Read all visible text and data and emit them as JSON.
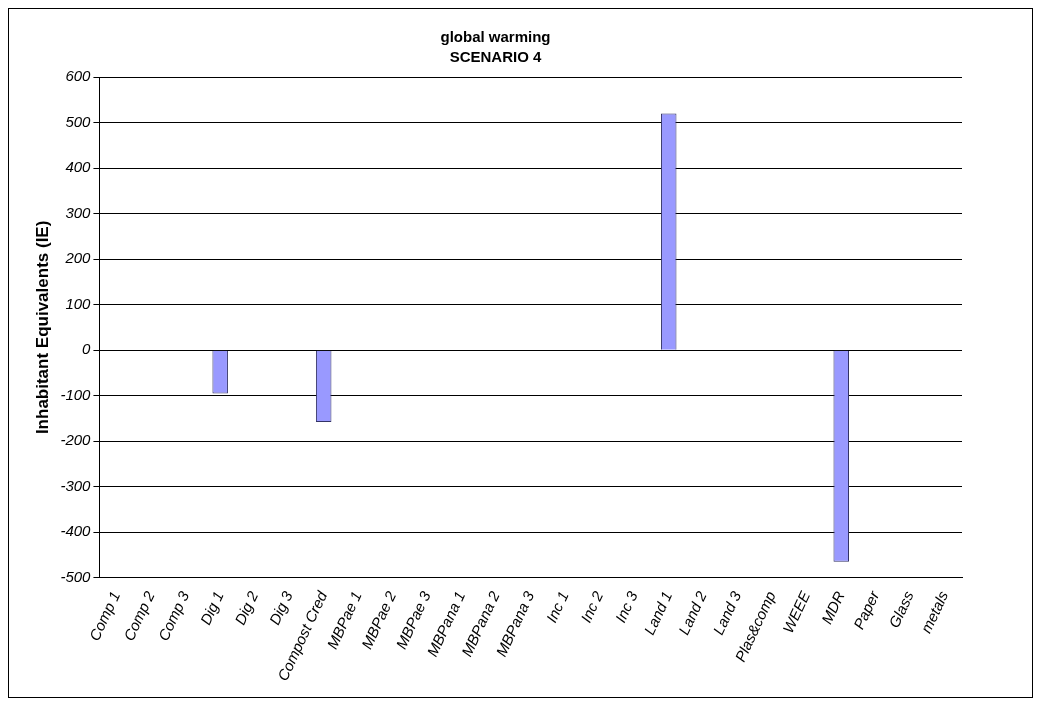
{
  "chart_data": {
    "type": "bar",
    "title": "global warming",
    "subtitle": "SCENARIO 4",
    "ylabel": "Inhabitant Equivalents (IE)",
    "categories": [
      "Comp 1",
      "Comp 2",
      "Comp 3",
      "Dig 1",
      "Dig 2",
      "Dig 3",
      "Compost Cred",
      "MBPae 1",
      "MBPae 2",
      "MBPae 3",
      "MBPana 1",
      "MBPana 2",
      "MBPana 3",
      "Inc 1",
      "Inc 2",
      "Inc 3",
      "Land 1",
      "Land 2",
      "Land 3",
      "Plas&comp",
      "WEEE",
      "MDR",
      "Paper",
      "Glass",
      "metals"
    ],
    "values": [
      0,
      0,
      0,
      -95,
      0,
      0,
      -158,
      0,
      0,
      0,
      0,
      0,
      0,
      0,
      0,
      0,
      520,
      0,
      0,
      0,
      0,
      -465,
      0,
      0,
      0
    ],
    "color": "#9999ff",
    "ylim": [
      -500,
      600
    ],
    "yticks": [
      -500,
      -400,
      -300,
      -200,
      -100,
      0,
      100,
      200,
      300,
      400,
      500,
      600
    ],
    "grid": "y",
    "legend": false
  }
}
